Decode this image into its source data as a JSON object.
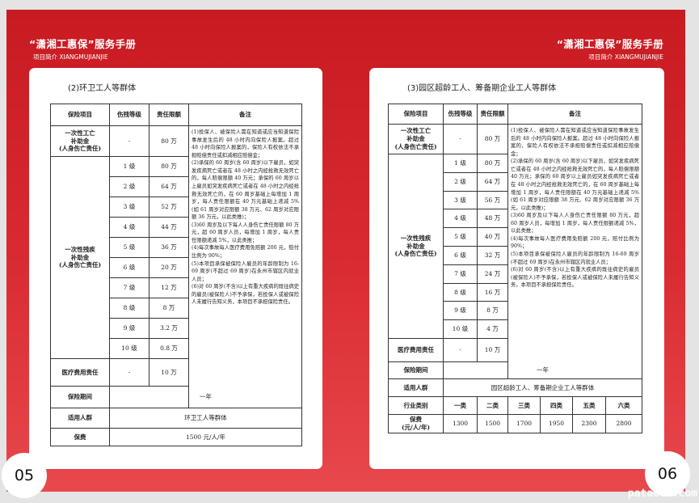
{
  "header": {
    "title": "“潇湘工惠保”服务手册",
    "subtitle": "项目简介  XIANGMUJIANJIE"
  },
  "left": {
    "page_number": "05",
    "section_title": "(2)环卫工人等群体",
    "columns": [
      "保险项目",
      "伤残等级",
      "责任限额",
      "备注"
    ],
    "death": {
      "name_lines": [
        "一次性工亡",
        "补助金",
        "(人身伤亡责任)"
      ],
      "level": "-",
      "limit": "80 万"
    },
    "disability": {
      "name_lines": [
        "一次性残疾",
        "补助金",
        "(人身伤亡责任)"
      ],
      "rows": [
        {
          "level": "1 级",
          "limit": "80 万"
        },
        {
          "level": "2 级",
          "limit": "64 万"
        },
        {
          "level": "3 级",
          "limit": "52 万"
        },
        {
          "level": "4 级",
          "limit": "44 万"
        },
        {
          "level": "5 级",
          "limit": "36 万"
        },
        {
          "level": "6 级",
          "limit": "20 万"
        },
        {
          "level": "7 级",
          "limit": "12 万"
        },
        {
          "level": "8 级",
          "limit": "8 万"
        },
        {
          "level": "9 级",
          "limit": "3.2 万"
        },
        {
          "level": "10 级",
          "limit": "0.8 万"
        }
      ]
    },
    "medical": {
      "name": "医疗费用责任",
      "level": "-",
      "limit": "10 万"
    },
    "notes": [
      "(1)投保人、被保险人需在知道或应当知道保险事故发生后的 48 小时内向保险人报案。超过 48 小时向保险人报案的，保险人有权依法不承担赔偿责任或扣减相应赔偿金；",
      "(2)承保的 60 周岁(含 60 周岁)以下雇员，如突发疾病死亡或者在 48 小时之内经抢救无效死亡的，每人赔偿限额 40 万元；承保的 60 周岁以上雇员如突发疾病死亡或者在 48 小时之内经抢救无效死亡的，在 60 周岁基础上每增加 1 周岁，每人责任限额在 40 万元基础上递减 5%(如 61 周岁对应限额 38 万元、62 周岁对应限额 36 万元，以此类推)；",
      "(3)60 周岁及以下每人人身伤亡责任限额 80 万元，超 60 周岁人员，每增加 1 周岁，每人责任限额递减 5%，以此类推；",
      "(4)每次事故每人医疗费用免赔额 200 元，赔付比例为 90%；",
      "(5)本项目承保被保险人雇员的年龄限制为 16-69 周岁(不超过 69 周岁)在永州市辖区内就业人员；",
      "(6)对 60 周岁(不含)以上有重大疾病的既往病史的雇员(被保险人)不予承保，若投保人或被保险人未履行告知义务，本项目不承担保险责任。"
    ],
    "period": {
      "label": "保险期间",
      "value": "一年"
    },
    "crowd": {
      "label": "适用人群",
      "value": "环卫工人等群体"
    },
    "premium": {
      "label": "保费",
      "value": "1500 元/人/年"
    }
  },
  "right": {
    "page_number": "06",
    "section_title": "(3)园区超龄工人、筹备期企业工人等群体",
    "columns": [
      "保险项目",
      "伤残等级",
      "责任限额",
      "备注"
    ],
    "death": {
      "name_lines": [
        "一次性工亡",
        "补助金",
        "(人身伤亡责任)"
      ],
      "level": "-",
      "limit": "80 万"
    },
    "disability": {
      "name_lines": [
        "一次性残疾",
        "补助金",
        "(人身伤亡责任)"
      ],
      "rows": [
        {
          "level": "1 级",
          "limit": "80 万"
        },
        {
          "level": "2 级",
          "limit": "64 万"
        },
        {
          "level": "3 级",
          "limit": "56 万"
        },
        {
          "level": "4 级",
          "limit": "48 万"
        },
        {
          "level": "5 级",
          "limit": "40 万"
        },
        {
          "level": "6 级",
          "limit": "32 万"
        },
        {
          "level": "7 级",
          "limit": "24 万"
        },
        {
          "level": "8 级",
          "limit": "16 万"
        },
        {
          "level": "9 级",
          "limit": "8 万"
        },
        {
          "level": "10 级",
          "limit": "4 万"
        }
      ]
    },
    "medical": {
      "name": "医疗费用责任",
      "level": "-",
      "limit": "10 万"
    },
    "notes": [
      "(1)投保人、被保险人需在知道或应当知道保险事故发生后的 48 小时内向保险人报案。超过 48 小时向保险人报案的，保险人有权依法不承担赔偿责任或扣减相应赔偿金；",
      "(2)承保的 60 周岁(含 60 周岁)以下雇员，如突发疾病死亡或者在 48 小时之内经抢救无效死亡的，每人赔偿限额 40 万元；承保的 60 周岁以上雇员如突发疾病死亡或者在 48 小时之内经抢救无效死亡的，在 60 周岁基础上每增加 1 周岁，每人责任限额在 40 万元基础上递减 5%(如 61 周岁对应限额 38 万元、62 周岁对应限额 36 万元，以此类推)；",
      "(3)60 周岁及以下每人人身伤亡责任限额 80 万元，超 60 周岁人员，每增加 1 周岁，每人责任限额递减 5%，以此类推；",
      "(4)每次事故每人医疗费用免赔额 200 元，赔付比例为 90%；",
      "(5)本项目承保被保险人雇员的年龄限制为 16-69 周岁(不超过 69 周岁)在永州市辖区内就业人员；",
      "(6)对 60 周岁(不含)以上有重大疾病的既往病史的雇员(被保险人)不予承保，若投保人或被保险人未履行告知义务，本项目不承担保险责任。"
    ],
    "period": {
      "label": "保险期间",
      "value": "一年"
    },
    "crowd": {
      "label": "适用人群",
      "value": "园区超龄工人、筹备期企业工人等群体"
    },
    "industry": {
      "label": "行业类别",
      "values": [
        "一类",
        "二类",
        "三类",
        "四类",
        "五类",
        "六类"
      ]
    },
    "premium": {
      "label_lines": [
        "保费",
        "(元/人/年)"
      ],
      "values": [
        "1300",
        "1500",
        "1700",
        "1950",
        "2300",
        "2800"
      ]
    }
  },
  "watermark": "pataoez.com",
  "colors": {
    "brand_red": "#c81a21",
    "card": "#ffffff"
  }
}
